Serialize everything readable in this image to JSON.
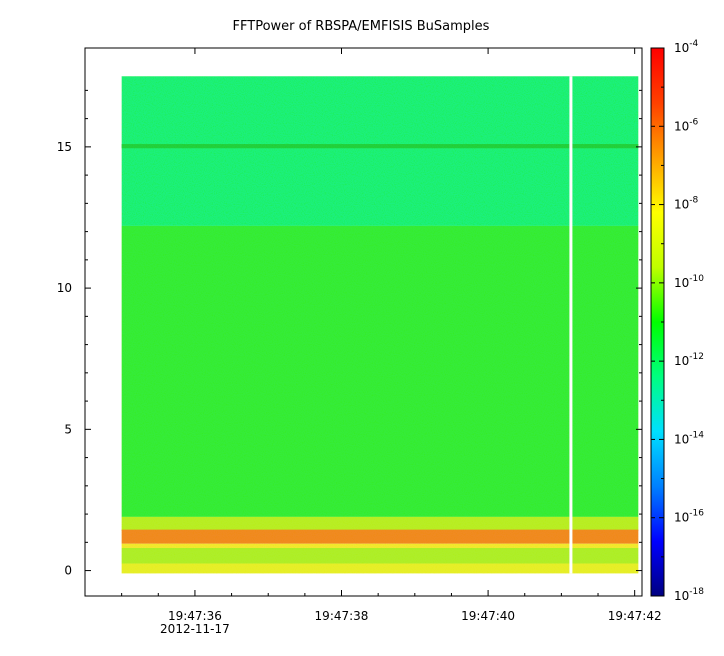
{
  "chart_data": {
    "type": "heatmap",
    "title": "FFTPower of RBSPA/EMFISIS  BuSamples",
    "xlabel": "",
    "ylabel": "",
    "x_ticks": [
      {
        "label": "19:47:36",
        "sublabel": "2012-11-17"
      },
      {
        "label": "19:47:38",
        "sublabel": ""
      },
      {
        "label": "19:47:40",
        "sublabel": ""
      },
      {
        "label": "19:47:42",
        "sublabel": ""
      }
    ],
    "x_range_seconds_after_19_47_35": [
      -0.5,
      7.1
    ],
    "x_data_range_seconds_after_19_47_35": [
      0.0,
      7.05
    ],
    "x_gap_seconds_after_19_47_35": 6.13,
    "y_ticks": [
      0,
      5,
      10,
      15
    ],
    "ylim": [
      -0.9,
      18.5
    ],
    "y_data_range": [
      -0.1,
      17.5
    ],
    "colorbar": {
      "scale": "log",
      "range": [
        1e-18,
        0.0001
      ],
      "tick_exponents": [
        -18,
        -16,
        -14,
        -12,
        -10,
        -8,
        -6,
        -4
      ],
      "tick_base": "10",
      "colors": [
        "#000080",
        "#0000ff",
        "#0080ff",
        "#00e0ff",
        "#00ff80",
        "#00ff00",
        "#c0ff00",
        "#ffff00",
        "#ffa000",
        "#ff4000",
        "#ff0000"
      ]
    },
    "bands": [
      {
        "y_range": [
          12.2,
          17.5
        ],
        "level_exponent": -13,
        "color": "#1ef07e"
      },
      {
        "y_range": [
          14.95,
          15.1
        ],
        "level_exponent": -11,
        "color": "#22d040"
      },
      {
        "y_range": [
          1.9,
          12.2
        ],
        "level_exponent": -11,
        "color": "#36ec3a"
      },
      {
        "y_range": [
          1.4,
          1.9
        ],
        "level_exponent": -9,
        "color": "#b8ee26"
      },
      {
        "y_range": [
          0.95,
          1.45
        ],
        "level_exponent": -6.5,
        "color": "#f08a22"
      },
      {
        "y_range": [
          0.8,
          0.95
        ],
        "level_exponent": -8.5,
        "color": "#f2e830"
      },
      {
        "y_range": [
          0.25,
          0.8
        ],
        "level_exponent": -9.5,
        "color": "#aeee2c"
      },
      {
        "y_range": [
          -0.1,
          0.25
        ],
        "level_exponent": -8.5,
        "color": "#e6ee2c"
      }
    ]
  }
}
